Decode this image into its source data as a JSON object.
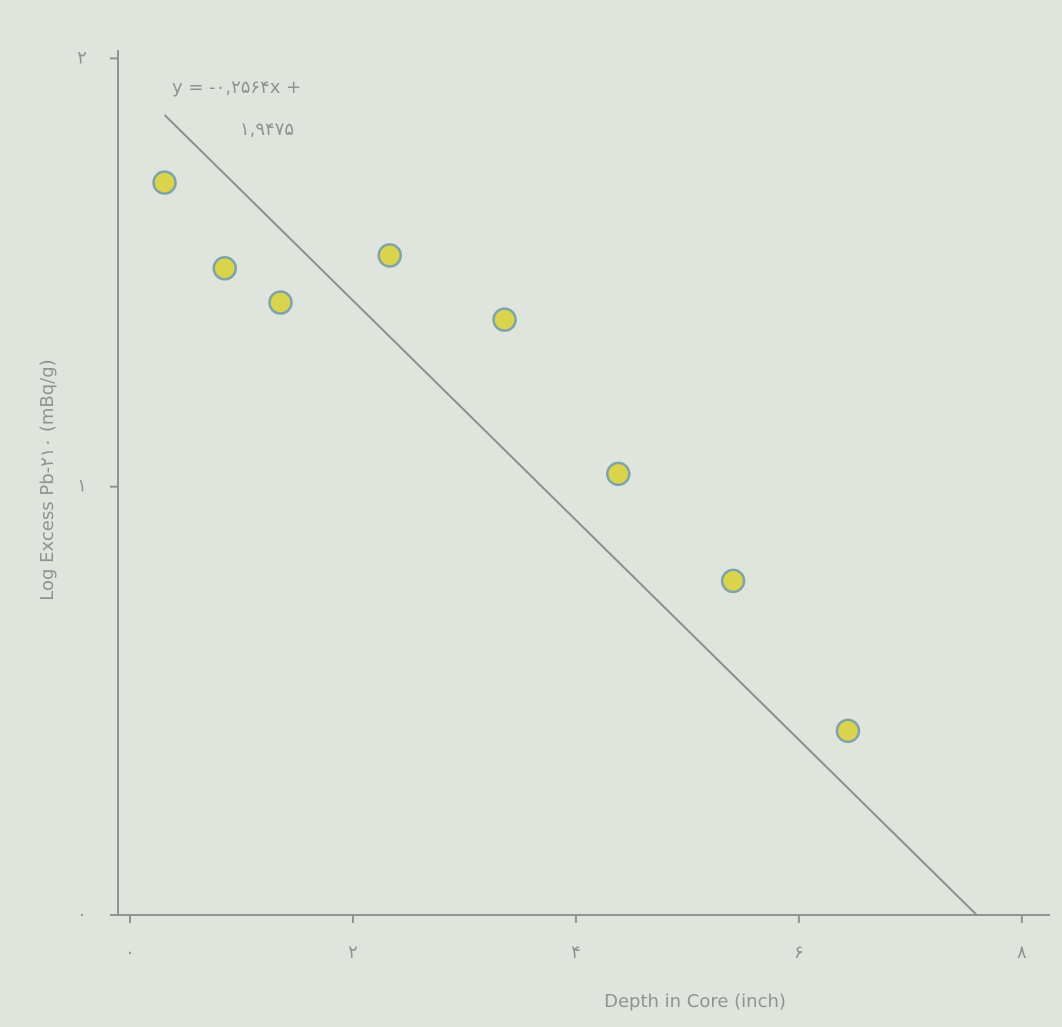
{
  "chart_data": {
    "type": "scatter",
    "x_label": "Depth in Core (inch)",
    "y_label": "Log Excess Pb-۲۱۰ (mBq/g)",
    "equation_lines": [
      "y = -۰,۲۵۶۴x +",
      "۱,۹۴۷۵"
    ],
    "trendline": {
      "slope": -0.2564,
      "intercept": 1.9475,
      "color": "#8a908e"
    },
    "x": [
      0.31,
      0.85,
      1.35,
      2.33,
      3.36,
      4.38,
      5.41,
      6.44
    ],
    "values": [
      1.71,
      1.51,
      1.43,
      1.54,
      1.39,
      1.03,
      0.78,
      0.43
    ],
    "color": "#d9d44c",
    "edge_color": "#7fa3a8",
    "xlim": [
      0,
      8.1
    ],
    "ylim": [
      0,
      2.05
    ],
    "xticks": [
      {
        "value": 0,
        "label": "۰"
      },
      {
        "value": 2,
        "label": "۲"
      },
      {
        "value": 4,
        "label": "۴"
      },
      {
        "value": 6,
        "label": "۶"
      },
      {
        "value": 8,
        "label": "۸"
      }
    ],
    "yticks": [
      {
        "value": 0,
        "label": "۰"
      },
      {
        "value": 1,
        "label": "۱"
      },
      {
        "value": 2,
        "label": "۲"
      }
    ],
    "grid": false
  }
}
